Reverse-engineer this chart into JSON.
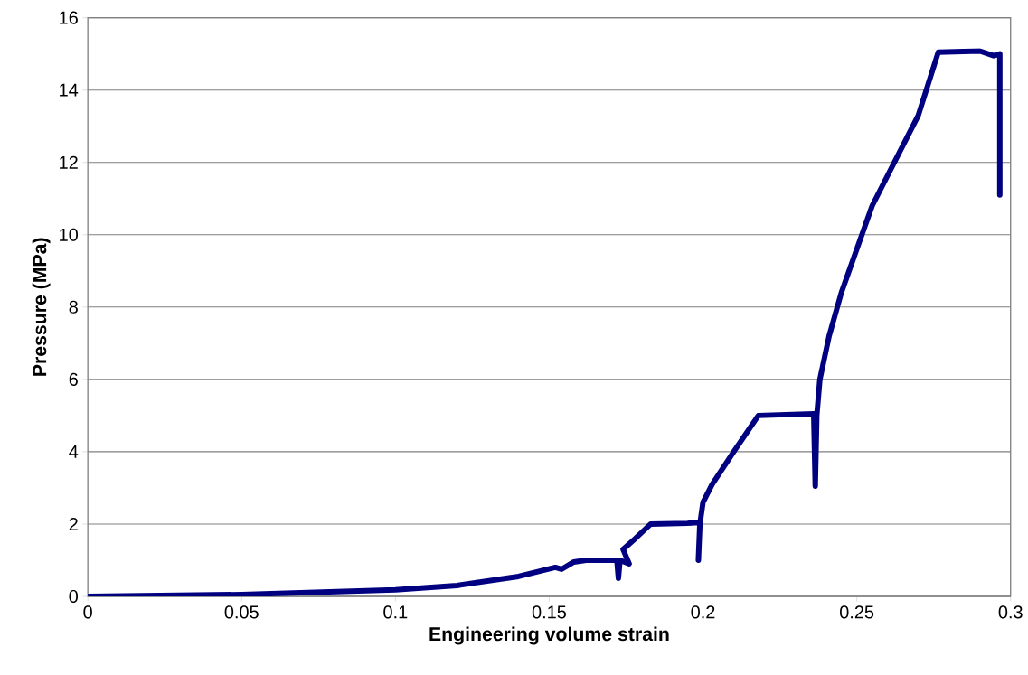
{
  "chart_data": {
    "type": "line",
    "xlabel": "Engineering volume strain",
    "ylabel": "Pressure (MPa)",
    "x": [
      0,
      0.05,
      0.1,
      0.12,
      0.14,
      0.152,
      0.154,
      0.158,
      0.162,
      0.172,
      0.1725,
      0.173,
      0.176,
      0.174,
      0.178,
      0.183,
      0.195,
      0.199,
      0.1985,
      0.199,
      0.2,
      0.203,
      0.21,
      0.218,
      0.236,
      0.2365,
      0.237,
      0.238,
      0.241,
      0.245,
      0.255,
      0.27,
      0.2765,
      0.29,
      0.2945,
      0.2965,
      0.2965
    ],
    "values": [
      0,
      0.05,
      0.18,
      0.3,
      0.55,
      0.8,
      0.75,
      0.95,
      1.0,
      1.0,
      0.5,
      1.0,
      0.9,
      1.3,
      1.6,
      2.0,
      2.02,
      2.05,
      1.0,
      2.0,
      2.6,
      3.1,
      4.0,
      5.0,
      5.05,
      3.05,
      5.0,
      6.0,
      7.2,
      8.4,
      10.8,
      13.3,
      15.05,
      15.08,
      14.95,
      15.0,
      11.1
    ],
    "color": "#000080",
    "xlim": [
      0,
      0.3
    ],
    "ylim": [
      0,
      16
    ],
    "xticks": [
      0,
      0.05,
      0.1,
      0.15,
      0.2,
      0.25,
      0.3
    ],
    "yticks": [
      0,
      2,
      4,
      6,
      8,
      10,
      12,
      14,
      16
    ],
    "grid": "y",
    "marker": "none",
    "line_style": "solid"
  }
}
